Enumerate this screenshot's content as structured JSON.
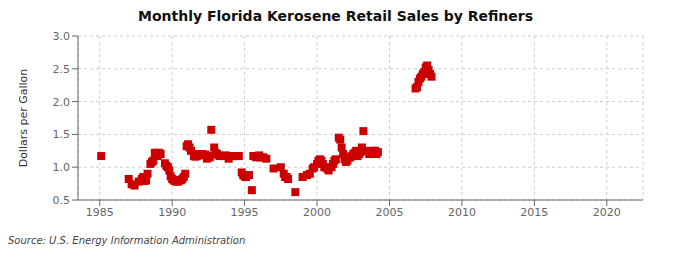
{
  "chart_data": {
    "type": "scatter",
    "title": "Monthly Florida Kerosene Retail Sales by Refiners",
    "ylabel": "Dollars per Gallon",
    "annotations": [
      "Source: U.S. Energy Information Administration"
    ],
    "color": "#cc0000",
    "marker": "square",
    "grid": true,
    "xlim": [
      1983.5,
      2022.5
    ],
    "ylim": [
      0.5,
      3.0
    ],
    "xticks": [
      1985,
      1990,
      1995,
      2000,
      2005,
      2010,
      2015,
      2020
    ],
    "yticks": [
      0.5,
      {
        "value": 1.0,
        "label": "1.0"
      },
      1.5,
      {
        "value": 2.0,
        "label": "2.0"
      },
      2.5,
      {
        "value": 3.0,
        "label": "3.0"
      }
    ],
    "x": [
      1985.1,
      1987.0,
      1987.2,
      1987.4,
      1987.7,
      1987.9,
      1988.0,
      1988.1,
      1988.2,
      1988.3,
      1988.5,
      1988.6,
      1988.7,
      1988.8,
      1988.9,
      1989.0,
      1989.1,
      1989.2,
      1989.5,
      1989.6,
      1989.7,
      1989.8,
      1989.9,
      1990.0,
      1990.1,
      1990.2,
      1990.3,
      1990.4,
      1990.5,
      1990.6,
      1990.7,
      1990.8,
      1990.9,
      1991.0,
      1991.1,
      1991.2,
      1991.3,
      1991.5,
      1991.6,
      1991.7,
      1991.8,
      1991.9,
      1992.0,
      1992.1,
      1992.3,
      1992.4,
      1992.5,
      1992.6,
      1992.7,
      1992.9,
      1993.0,
      1993.1,
      1993.2,
      1993.3,
      1993.5,
      1993.6,
      1993.7,
      1993.8,
      1993.9,
      1994.0,
      1994.1,
      1994.2,
      1994.3,
      1994.5,
      1994.6,
      1994.8,
      1994.9,
      1995.0,
      1995.1,
      1995.3,
      1995.5,
      1995.6,
      1995.7,
      1995.8,
      1995.9,
      1996.0,
      1996.1,
      1996.3,
      1996.5,
      1997.0,
      1997.5,
      1997.7,
      1997.8,
      1997.9,
      1998.0,
      1998.5,
      1999.0,
      1999.3,
      1999.5,
      1999.7,
      1999.8,
      2000.0,
      2000.1,
      2000.2,
      2000.3,
      2000.4,
      2000.5,
      2000.6,
      2000.7,
      2000.8,
      2001.0,
      2001.1,
      2001.2,
      2001.3,
      2001.5,
      2001.6,
      2001.7,
      2001.8,
      2001.9,
      2002.0,
      2002.1,
      2002.2,
      2002.3,
      2002.4,
      2002.5,
      2002.6,
      2002.7,
      2002.8,
      2002.9,
      2003.0,
      2003.1,
      2003.2,
      2003.4,
      2003.6,
      2003.7,
      2003.8,
      2003.9,
      2004.0,
      2004.1,
      2004.2,
      2006.8,
      2006.9,
      2007.0,
      2007.1,
      2007.2,
      2007.3,
      2007.4,
      2007.5,
      2007.6,
      2007.7,
      2007.8,
      2007.9
    ],
    "values": [
      1.17,
      0.82,
      0.74,
      0.72,
      0.78,
      0.82,
      0.85,
      0.79,
      0.8,
      0.9,
      1.05,
      1.08,
      1.1,
      1.22,
      1.2,
      1.17,
      1.22,
      1.2,
      1.06,
      1.02,
      1.0,
      0.95,
      0.86,
      0.82,
      0.8,
      0.79,
      0.78,
      0.78,
      0.8,
      0.8,
      0.82,
      0.85,
      0.9,
      1.32,
      1.35,
      1.3,
      1.25,
      1.17,
      1.16,
      1.17,
      1.2,
      1.2,
      1.18,
      1.2,
      1.19,
      1.13,
      1.17,
      1.15,
      1.57,
      1.3,
      1.22,
      1.2,
      1.18,
      1.17,
      1.17,
      1.17,
      1.18,
      1.17,
      1.13,
      1.17,
      1.17,
      1.17,
      1.17,
      1.17,
      1.17,
      0.92,
      0.88,
      0.86,
      0.85,
      0.88,
      0.65,
      1.17,
      1.17,
      1.15,
      1.17,
      1.18,
      1.15,
      1.15,
      1.13,
      0.98,
      1.0,
      0.9,
      0.85,
      0.85,
      0.82,
      0.62,
      0.85,
      0.88,
      0.9,
      0.98,
      1.0,
      1.05,
      1.1,
      1.12,
      1.1,
      1.05,
      1.0,
      1.0,
      0.98,
      0.95,
      1.0,
      1.05,
      1.1,
      1.12,
      1.45,
      1.42,
      1.3,
      1.2,
      1.12,
      1.08,
      1.1,
      1.15,
      1.15,
      1.17,
      1.2,
      1.22,
      1.25,
      1.17,
      1.2,
      1.23,
      1.3,
      1.55,
      1.25,
      1.2,
      1.22,
      1.22,
      1.25,
      1.25,
      1.2,
      1.23,
      2.2,
      2.22,
      2.3,
      2.35,
      2.38,
      2.42,
      2.45,
      2.52,
      2.55,
      2.48,
      2.42,
      2.38
    ]
  }
}
